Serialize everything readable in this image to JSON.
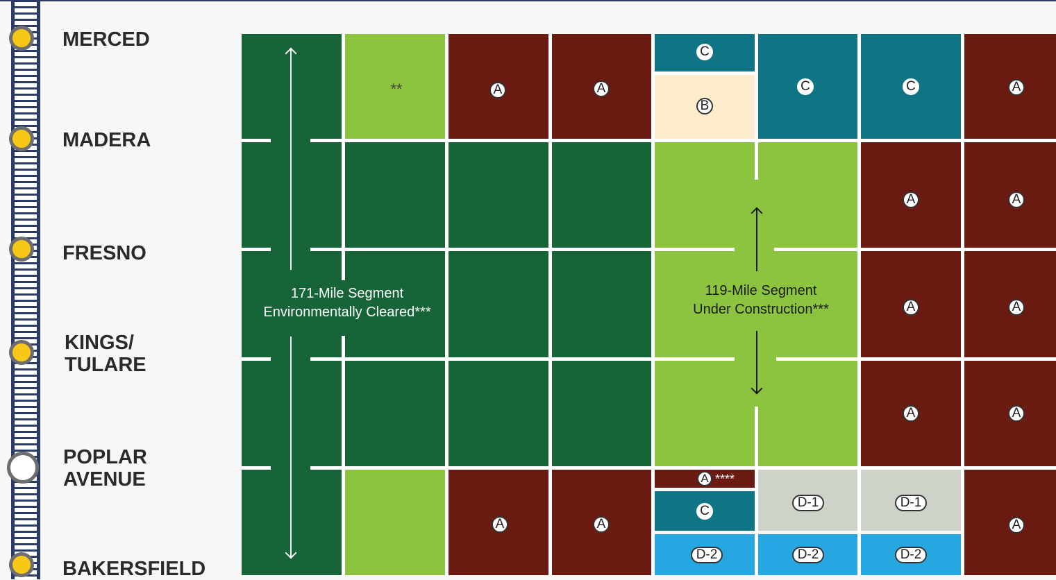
{
  "stations": [
    {
      "name": "MERCED",
      "type": "filled"
    },
    {
      "name": "MADERA",
      "type": "filled"
    },
    {
      "name": "FRESNO",
      "type": "filled"
    },
    {
      "name": "KINGS/\nTULARE",
      "line1": "KINGS/",
      "line2": "TULARE",
      "type": "filled"
    },
    {
      "name": "POPLAR\nAVENUE",
      "line1": "POPLAR",
      "line2": "AVENUE",
      "type": "open"
    },
    {
      "name": "BAKERSFIELD",
      "type": "filled"
    }
  ],
  "segments": {
    "cleared": {
      "line1": "171-Mile Segment",
      "line2": "Environmentally Cleared***"
    },
    "construction": {
      "line1": "119-Mile Segment",
      "line2": "Under Construction***"
    }
  },
  "markers": {
    "A": "A",
    "B": "B",
    "C": "C",
    "D1": "D-1",
    "D2": "D-2",
    "double_star": "**",
    "quad_star": "****"
  },
  "colors": {
    "dark_green": "#166437",
    "light_green": "#8cc43f",
    "maroon": "#6b1a12",
    "teal": "#0f7483",
    "beige": "#fdeccb",
    "gray": "#cdd3c8",
    "sky_blue": "#27a7e2",
    "station_yellow": "#f7c815",
    "track_navy": "#2c3a66"
  }
}
